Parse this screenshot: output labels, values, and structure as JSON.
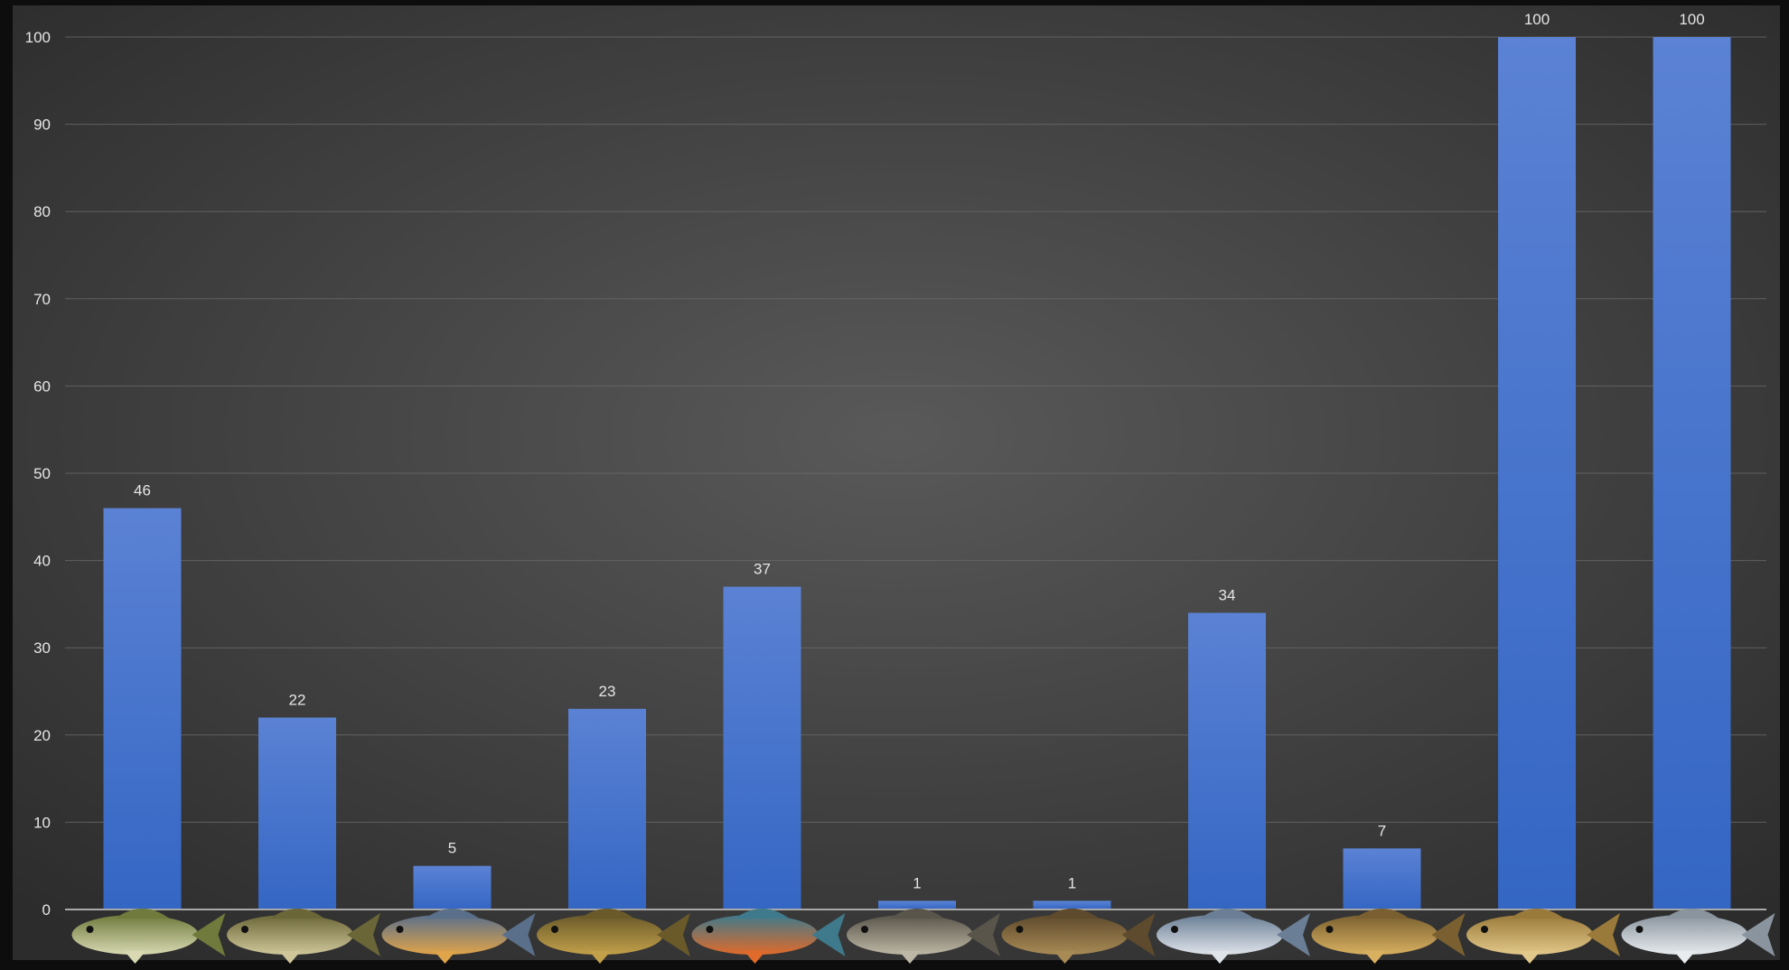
{
  "chart_data": {
    "type": "bar",
    "title": "",
    "xlabel": "",
    "ylabel": "",
    "ylim": [
      0,
      100
    ],
    "yticks": [
      0,
      10,
      20,
      30,
      40,
      50,
      60,
      70,
      80,
      90,
      100
    ],
    "grid": true,
    "legend": "none",
    "categories": [
      "",
      "",
      "",
      "",
      "",
      "",
      "",
      "",
      "",
      "",
      ""
    ],
    "category_icons": [
      "largemouth-bass-fish-icon",
      "spotted-bass-fish-icon",
      "bluegill-fish-icon",
      "warmouth-fish-icon",
      "longear-sunfish-fish-icon",
      "channel-catfish-fish-icon",
      "bullhead-catfish-fish-icon",
      "striped-bass-fish-icon",
      "common-carp-fish-icon",
      "golden-shiner-fish-icon",
      "gizzard-shad-fish-icon"
    ],
    "series": [
      {
        "values": [
          46,
          22,
          5,
          23,
          37,
          1,
          1,
          34,
          7,
          100,
          100
        ],
        "data_labels": [
          "46",
          "22",
          "5",
          "23",
          "37",
          "1",
          "1",
          "34",
          "7",
          "100",
          "100"
        ]
      }
    ],
    "colors": {
      "bar_top": "#5b82d4",
      "bar_bottom": "#3466c4",
      "background_center": "#595959",
      "background_edge": "#2c2c2c",
      "frame": "#0d0d0d",
      "gridline": "#6a6a6a",
      "baseline": "#a9a9a9",
      "text": "#e6e6e6"
    }
  }
}
